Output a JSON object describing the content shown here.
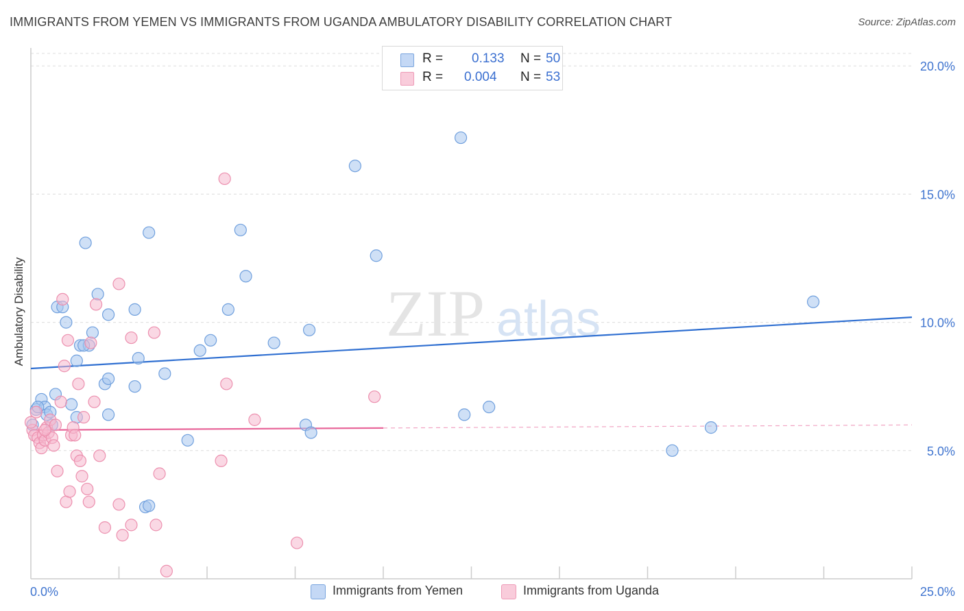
{
  "title": "IMMIGRANTS FROM YEMEN VS IMMIGRANTS FROM UGANDA AMBULATORY DISABILITY CORRELATION CHART",
  "source": "Source: ZipAtlas.com",
  "watermark": {
    "zip": "ZIP",
    "atlas": "atlas"
  },
  "legend": {
    "r_label": "R =",
    "n_label": "N =",
    "yemen": {
      "r": "0.133",
      "n": "50"
    },
    "uganda": {
      "r": "0.004",
      "n": "53"
    }
  },
  "colors": {
    "yemen_fill": "#a8c7ef",
    "yemen_stroke": "#6f9fdd",
    "yemen_line": "#2f6fd1",
    "uganda_fill": "#f6b8cd",
    "uganda_stroke": "#ec8fae",
    "uganda_line": "#e8679a",
    "tick_text": "#3f74cf",
    "grid": "#dcdcdc",
    "axis": "#cccccc"
  },
  "chart_data": {
    "type": "scatter",
    "xlabel": "",
    "ylabel": "Ambulatory Disability",
    "xlim": [
      0,
      25
    ],
    "ylim": [
      0,
      20.7
    ],
    "x_tick_labels": [
      {
        "value": 0,
        "label": "0.0%"
      },
      {
        "value": 25,
        "label": "25.0%"
      }
    ],
    "y_tick_labels": [
      {
        "value": 5,
        "label": "5.0%"
      },
      {
        "value": 10,
        "label": "10.0%"
      },
      {
        "value": 15,
        "label": "15.0%"
      },
      {
        "value": 20,
        "label": "20.0%"
      }
    ],
    "series": [
      {
        "name": "Immigrants from Yemen",
        "color": "#a8c7ef",
        "r": 0.133,
        "n": 50,
        "trend": {
          "x": [
            0,
            25
          ],
          "y": [
            8.2,
            10.2
          ],
          "dashed_from": null
        },
        "points": [
          {
            "x": 0.15,
            "y": 6.6
          },
          {
            "x": 0.3,
            "y": 7.0
          },
          {
            "x": 0.4,
            "y": 6.7
          },
          {
            "x": 0.45,
            "y": 6.4
          },
          {
            "x": 0.6,
            "y": 6.0
          },
          {
            "x": 0.7,
            "y": 7.2
          },
          {
            "x": 0.75,
            "y": 10.6
          },
          {
            "x": 0.9,
            "y": 10.6
          },
          {
            "x": 1.0,
            "y": 10.0
          },
          {
            "x": 1.15,
            "y": 6.8
          },
          {
            "x": 1.3,
            "y": 8.5
          },
          {
            "x": 1.3,
            "y": 6.3
          },
          {
            "x": 1.4,
            "y": 9.1
          },
          {
            "x": 1.55,
            "y": 13.1
          },
          {
            "x": 1.65,
            "y": 9.1
          },
          {
            "x": 1.75,
            "y": 9.6
          },
          {
            "x": 1.9,
            "y": 11.1
          },
          {
            "x": 2.1,
            "y": 7.6
          },
          {
            "x": 2.2,
            "y": 10.3
          },
          {
            "x": 2.2,
            "y": 6.4
          },
          {
            "x": 2.2,
            "y": 7.8
          },
          {
            "x": 2.95,
            "y": 10.5
          },
          {
            "x": 2.95,
            "y": 7.5
          },
          {
            "x": 3.05,
            "y": 8.6
          },
          {
            "x": 3.25,
            "y": 2.8
          },
          {
            "x": 3.35,
            "y": 2.85
          },
          {
            "x": 3.35,
            "y": 13.5
          },
          {
            "x": 3.8,
            "y": 8.0
          },
          {
            "x": 4.45,
            "y": 5.4
          },
          {
            "x": 4.8,
            "y": 8.9
          },
          {
            "x": 5.1,
            "y": 9.3
          },
          {
            "x": 5.6,
            "y": 10.5
          },
          {
            "x": 5.95,
            "y": 13.6
          },
          {
            "x": 6.1,
            "y": 11.8
          },
          {
            "x": 6.9,
            "y": 9.2
          },
          {
            "x": 7.8,
            "y": 6.0
          },
          {
            "x": 7.9,
            "y": 9.7
          },
          {
            "x": 7.95,
            "y": 5.7
          },
          {
            "x": 9.2,
            "y": 16.1
          },
          {
            "x": 9.8,
            "y": 12.6
          },
          {
            "x": 12.2,
            "y": 17.2
          },
          {
            "x": 12.3,
            "y": 6.4
          },
          {
            "x": 13.0,
            "y": 6.7
          },
          {
            "x": 18.2,
            "y": 5.0
          },
          {
            "x": 19.3,
            "y": 5.9
          },
          {
            "x": 22.2,
            "y": 10.8
          },
          {
            "x": 0.05,
            "y": 6.0
          },
          {
            "x": 0.2,
            "y": 6.7
          },
          {
            "x": 1.5,
            "y": 9.1
          },
          {
            "x": 0.55,
            "y": 6.5
          }
        ]
      },
      {
        "name": "Immigrants from Uganda",
        "color": "#f6b8cd",
        "r": 0.004,
        "n": 53,
        "trend": {
          "x": [
            0,
            25
          ],
          "y": [
            5.8,
            6.0
          ],
          "dashed_from": 10.0
        },
        "points": [
          {
            "x": 0.05,
            "y": 5.8
          },
          {
            "x": 0.1,
            "y": 5.6
          },
          {
            "x": 0.15,
            "y": 6.5
          },
          {
            "x": 0.2,
            "y": 5.5
          },
          {
            "x": 0.25,
            "y": 5.3
          },
          {
            "x": 0.3,
            "y": 5.1
          },
          {
            "x": 0.35,
            "y": 5.6
          },
          {
            "x": 0.4,
            "y": 5.4
          },
          {
            "x": 0.45,
            "y": 5.9
          },
          {
            "x": 0.5,
            "y": 5.7
          },
          {
            "x": 0.55,
            "y": 6.2
          },
          {
            "x": 0.6,
            "y": 5.5
          },
          {
            "x": 0.65,
            "y": 5.2
          },
          {
            "x": 0.7,
            "y": 6.0
          },
          {
            "x": 0.75,
            "y": 4.2
          },
          {
            "x": 0.85,
            "y": 6.9
          },
          {
            "x": 0.9,
            "y": 10.9
          },
          {
            "x": 0.95,
            "y": 8.3
          },
          {
            "x": 1.0,
            "y": 3.0
          },
          {
            "x": 1.05,
            "y": 9.3
          },
          {
            "x": 1.1,
            "y": 3.4
          },
          {
            "x": 1.15,
            "y": 5.6
          },
          {
            "x": 1.2,
            "y": 5.9
          },
          {
            "x": 1.25,
            "y": 5.6
          },
          {
            "x": 1.3,
            "y": 4.8
          },
          {
            "x": 1.35,
            "y": 7.6
          },
          {
            "x": 1.4,
            "y": 4.6
          },
          {
            "x": 1.45,
            "y": 4.0
          },
          {
            "x": 1.5,
            "y": 6.3
          },
          {
            "x": 1.6,
            "y": 3.5
          },
          {
            "x": 1.65,
            "y": 3.0
          },
          {
            "x": 1.7,
            "y": 9.2
          },
          {
            "x": 1.8,
            "y": 6.9
          },
          {
            "x": 1.85,
            "y": 10.7
          },
          {
            "x": 1.95,
            "y": 4.8
          },
          {
            "x": 2.1,
            "y": 2.0
          },
          {
            "x": 2.5,
            "y": 2.9
          },
          {
            "x": 2.5,
            "y": 11.5
          },
          {
            "x": 2.6,
            "y": 1.7
          },
          {
            "x": 2.85,
            "y": 2.1
          },
          {
            "x": 2.85,
            "y": 9.4
          },
          {
            "x": 3.5,
            "y": 9.6
          },
          {
            "x": 3.55,
            "y": 2.1
          },
          {
            "x": 3.65,
            "y": 4.1
          },
          {
            "x": 3.85,
            "y": 0.3
          },
          {
            "x": 5.4,
            "y": 4.6
          },
          {
            "x": 5.5,
            "y": 15.6
          },
          {
            "x": 5.55,
            "y": 7.6
          },
          {
            "x": 6.35,
            "y": 6.2
          },
          {
            "x": 7.55,
            "y": 1.4
          },
          {
            "x": 9.75,
            "y": 7.1
          },
          {
            "x": 0.0,
            "y": 6.1
          },
          {
            "x": 0.4,
            "y": 5.8
          }
        ]
      }
    ]
  },
  "bottom_legend": {
    "yemen_label": "Immigrants from Yemen",
    "uganda_label": "Immigrants from Uganda"
  }
}
